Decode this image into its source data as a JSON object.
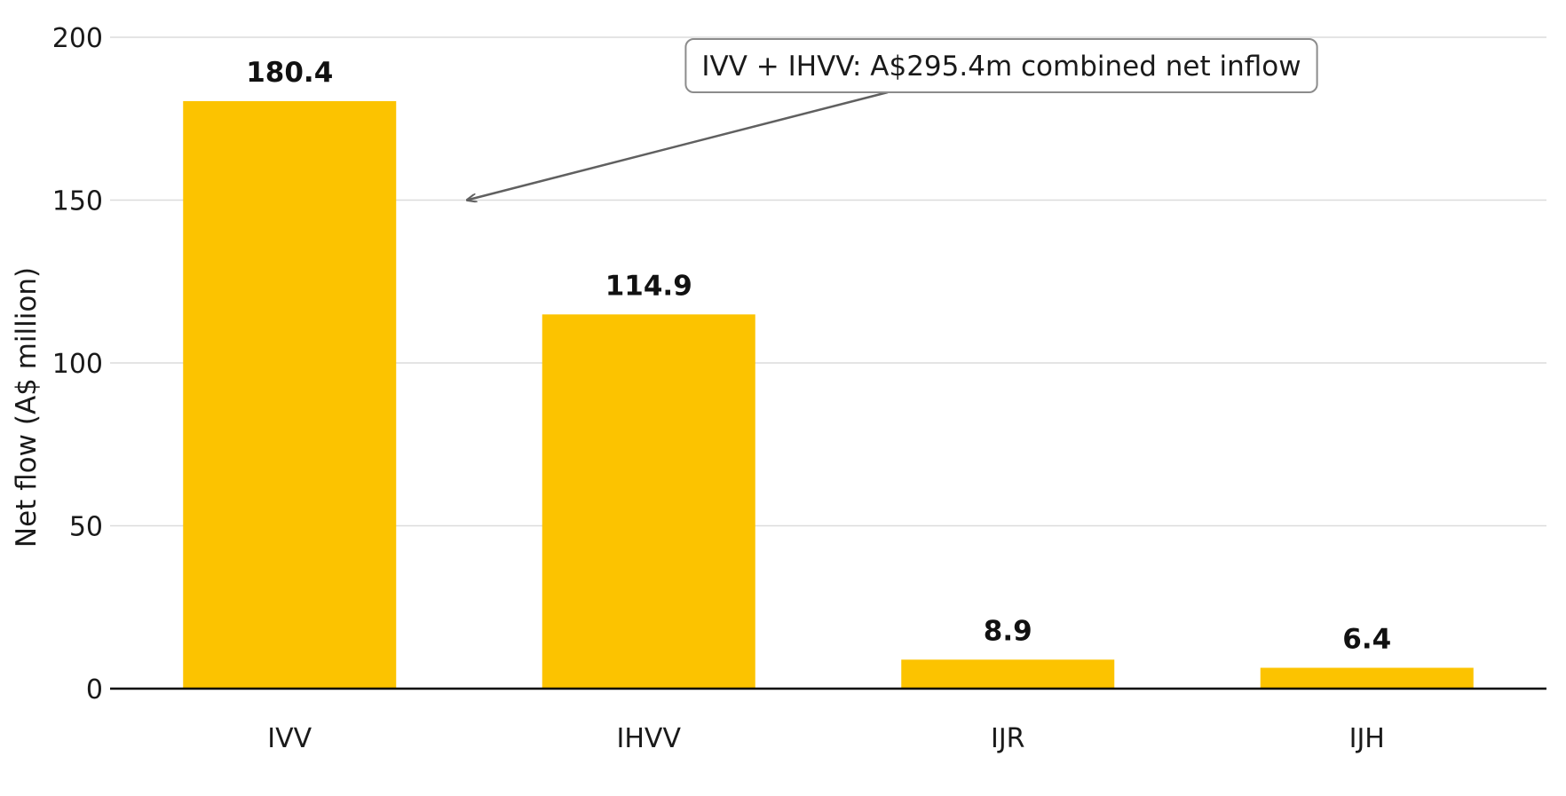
{
  "chart_data": {
    "type": "bar",
    "categories": [
      "IVV",
      "IHVV",
      "IJR",
      "IJH"
    ],
    "values": [
      180.4,
      114.9,
      8.9,
      6.4
    ],
    "value_labels": [
      "180.4",
      "114.9",
      "8.9",
      "6.4"
    ],
    "title": "",
    "xlabel": "",
    "ylabel": "Net flow (A$ million)",
    "ylim": [
      0,
      200
    ],
    "yticks": [
      0,
      50,
      100,
      150,
      200
    ],
    "grid": "horizontal",
    "bar_color": "#FCC300",
    "annotation": {
      "text": "IVV + IHVV: A$295.4m combined net inflow",
      "arrow_target": {
        "category": "IVV",
        "y": 150
      }
    }
  }
}
